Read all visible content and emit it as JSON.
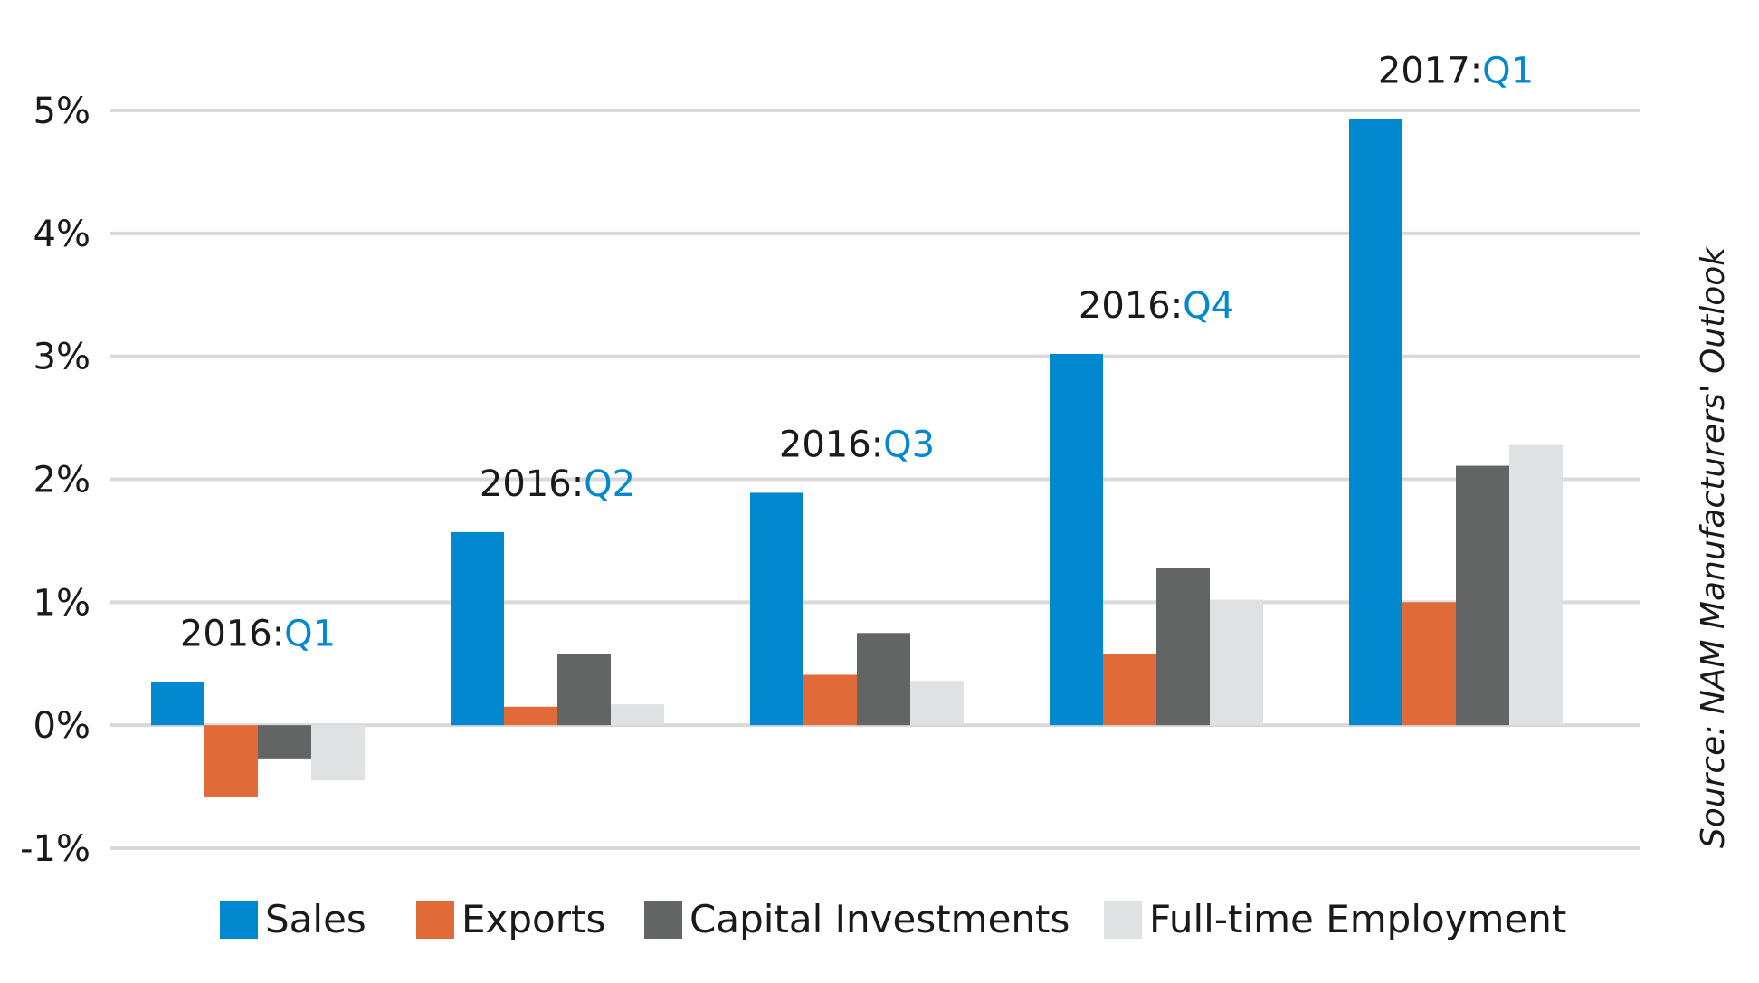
{
  "chart_data": {
    "type": "bar",
    "categories_prefix": [
      "2016:",
      "2016:",
      "2016:",
      "2016:",
      "2017:"
    ],
    "categories_suffix": [
      "Q1",
      "Q2",
      "Q3",
      "Q4",
      "Q1"
    ],
    "categories": [
      "2016:Q1",
      "2016:Q2",
      "2016:Q3",
      "2016:Q4",
      "2017:Q1"
    ],
    "series": [
      {
        "name": "Sales",
        "color": "#0288CF",
        "values": [
          0.35,
          1.57,
          1.89,
          3.02,
          4.93
        ]
      },
      {
        "name": "Exports",
        "color": "#E06A38",
        "values": [
          -0.58,
          0.15,
          0.41,
          0.58,
          1.0
        ]
      },
      {
        "name": "Capital Investments",
        "color": "#626563",
        "values": [
          -0.27,
          0.58,
          0.75,
          1.28,
          2.11
        ]
      },
      {
        "name": "Full-time Employment",
        "color": "#E0E1E3",
        "values": [
          -0.45,
          0.17,
          0.36,
          1.02,
          2.28
        ]
      }
    ],
    "yticks": [
      -1,
      0,
      1,
      2,
      3,
      4,
      5
    ],
    "ytick_labels": [
      "-1%",
      "0%",
      "1%",
      "2%",
      "3%",
      "4%",
      "5%"
    ],
    "ylim": [
      -1,
      5
    ],
    "grid": true,
    "legend_position": "bottom",
    "source": "Source: NAM Manufacturers' Outlook",
    "label_colors": {
      "prefix": "#1a1a1a",
      "suffix": "#0288CF"
    },
    "grid_color": "#D9D9D9"
  }
}
